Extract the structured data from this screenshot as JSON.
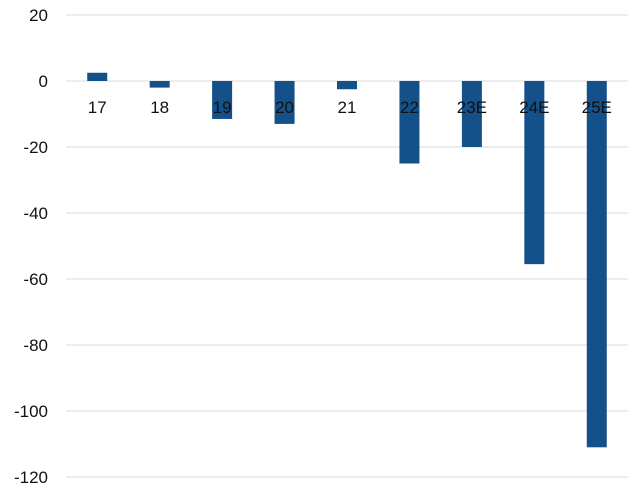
{
  "chart_data": {
    "type": "bar",
    "categories": [
      "17",
      "18",
      "19",
      "20",
      "21",
      "22",
      "23E",
      "24E",
      "25E"
    ],
    "values": [
      2.5,
      -2,
      -11.5,
      -13,
      -2.5,
      -25,
      -20,
      -55.5,
      -111
    ],
    "ylim": [
      -120,
      20
    ],
    "yticks": [
      20,
      0,
      -20,
      -40,
      -60,
      -80,
      -100,
      -120
    ],
    "grid": true,
    "legend": "none",
    "bar_color": "#14508a",
    "xlabel": "",
    "ylabel": "",
    "title": ""
  }
}
